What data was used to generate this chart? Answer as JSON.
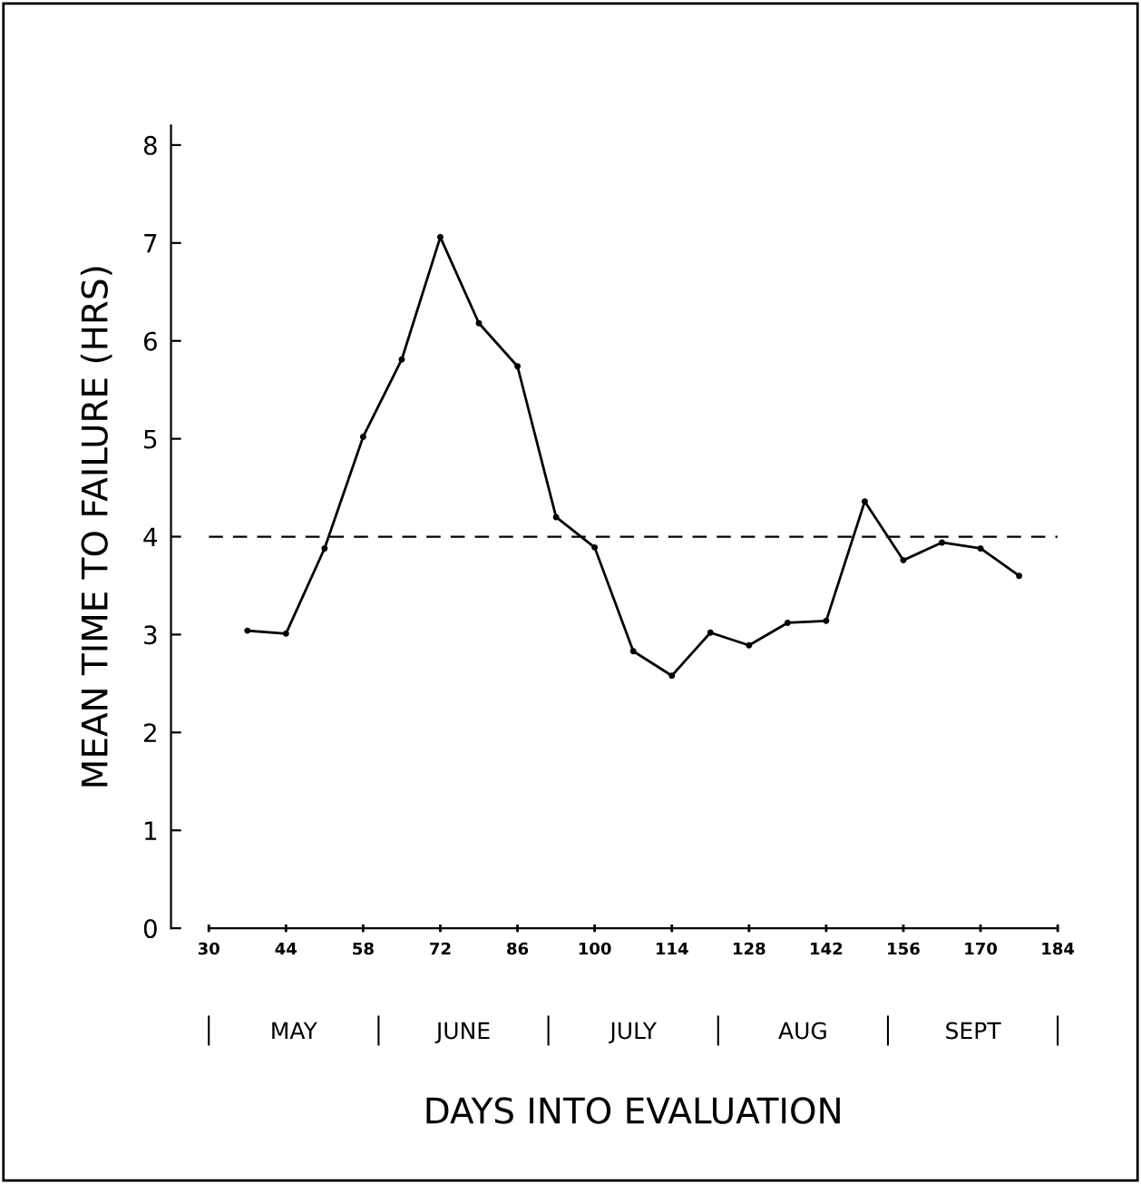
{
  "chart_data": {
    "type": "line",
    "xlabel": "DAYS INTO EVALUATION",
    "ylabel": "MEAN TIME TO FAILURE (HRS)",
    "x": [
      37,
      44,
      51,
      58,
      65,
      72,
      79,
      86,
      93,
      100,
      107,
      114,
      121,
      128,
      135,
      142,
      149,
      156,
      163,
      170,
      177
    ],
    "series": [
      {
        "color": "#000000",
        "values": [
          3.04,
          3.01,
          3.88,
          5.02,
          5.81,
          7.06,
          6.18,
          5.74,
          4.2,
          3.89,
          2.83,
          2.58,
          3.02,
          2.89,
          3.12,
          3.14,
          4.36,
          3.76,
          3.94,
          3.88,
          3.6
        ]
      }
    ],
    "xlim": [
      30,
      184
    ],
    "xticks": [
      30,
      44,
      58,
      72,
      86,
      100,
      114,
      128,
      142,
      156,
      170,
      184
    ],
    "ylim": [
      0,
      8.2
    ],
    "yticks": [
      0,
      1,
      2,
      3,
      4,
      5,
      6,
      7,
      8
    ],
    "ref_lines": [
      {
        "axis": "y",
        "value": 4,
        "color": "#000000",
        "line_style": "dashed"
      }
    ],
    "annotations": [
      "MAY",
      "JUNE",
      "JULY",
      "AUG",
      "SEPT"
    ],
    "marker": "circle",
    "line_style": "solid",
    "grid": false,
    "legend": false
  }
}
